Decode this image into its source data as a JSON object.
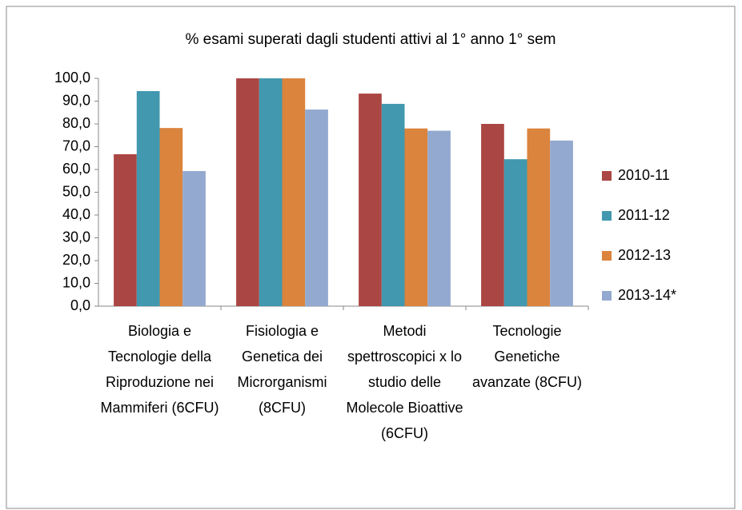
{
  "chart_data": {
    "type": "bar",
    "title": "% esami superati  dagli studenti attivi al 1° anno 1° sem",
    "categories": [
      "Biologia e Tecnologie della Riproduzione nei Mammiferi (6CFU)",
      "Fisiologia e Genetica dei Microrganismi (8CFU)",
      "Metodi spettroscopici x lo studio delle Molecole Bioattive (6CFU)",
      "Tecnologie Genetiche avanzate (8CFU)"
    ],
    "series": [
      {
        "name": "2010-11",
        "color": "#aa4643",
        "values": [
          66.7,
          100,
          93.3,
          80
        ]
      },
      {
        "name": "2011-12",
        "color": "#4198af",
        "values": [
          94.4,
          100,
          88.8,
          64.5
        ]
      },
      {
        "name": "2012-13",
        "color": "#db843d",
        "values": [
          78.2,
          100,
          78,
          78
        ]
      },
      {
        "name": "2013-14*",
        "color": "#93a9cf",
        "values": [
          59.3,
          86.3,
          77,
          72.7
        ]
      }
    ],
    "ylim": [
      0,
      100
    ],
    "yticks": [
      {
        "value": 0,
        "label": "0,0"
      },
      {
        "value": 10,
        "label": "10,0"
      },
      {
        "value": 20,
        "label": "20,0"
      },
      {
        "value": 30,
        "label": "30,0"
      },
      {
        "value": 40,
        "label": "40,0"
      },
      {
        "value": 50,
        "label": "50,0"
      },
      {
        "value": 60,
        "label": "60,0"
      },
      {
        "value": 70,
        "label": "70,0"
      },
      {
        "value": 80,
        "label": "80,0"
      },
      {
        "value": 90,
        "label": "90,0"
      },
      {
        "value": 100,
        "label": "100,0"
      }
    ],
    "legend": "right",
    "grid": false
  }
}
